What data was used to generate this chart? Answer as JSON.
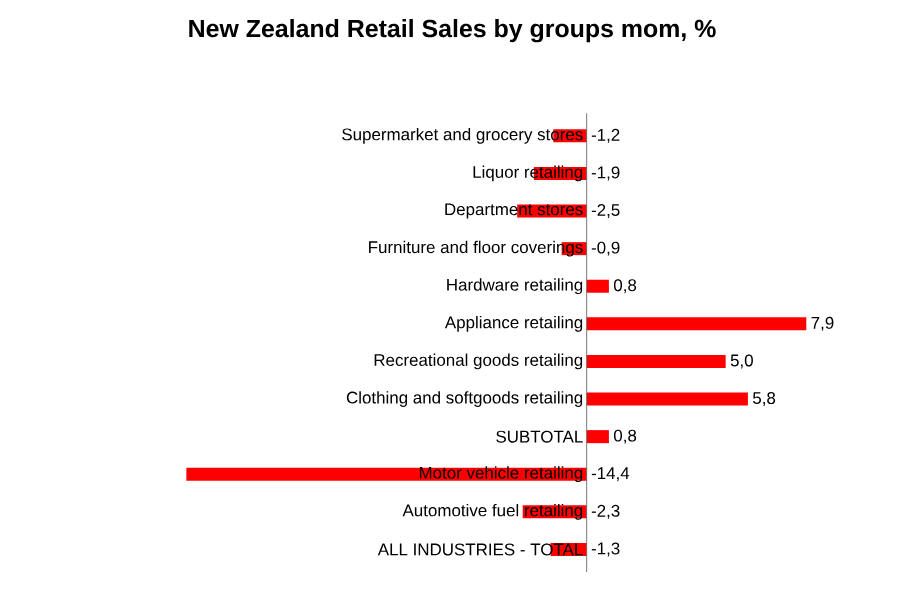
{
  "chart_data": {
    "type": "bar",
    "orientation": "horizontal",
    "title": "New Zealand Retail Sales by groups mom, %",
    "categories": [
      "Supermarket and grocery stores",
      "Liquor retailing",
      "Department stores",
      "Furniture and floor coverings",
      "Hardware retailing",
      "Appliance retailing",
      "Recreational goods  retailing",
      "Clothing and softgoods  retailing",
      "SUBTOTAL",
      "Motor vehicle retailing",
      "Automotive fuel retailing",
      "ALL INDUSTRIES  - TOTAL"
    ],
    "values": [
      -1.2,
      -1.9,
      -2.5,
      -0.9,
      0.8,
      7.9,
      5.0,
      5.8,
      0.8,
      -14.4,
      -2.3,
      -1.3
    ],
    "value_labels": [
      "-1,2",
      "-1,9",
      "-2,5",
      "-0,9",
      "0,8",
      "7,9",
      "5,0",
      "5,8",
      "0,8",
      "-14,4",
      "-2,3",
      "-1,3"
    ],
    "color": "#ff0000"
  }
}
